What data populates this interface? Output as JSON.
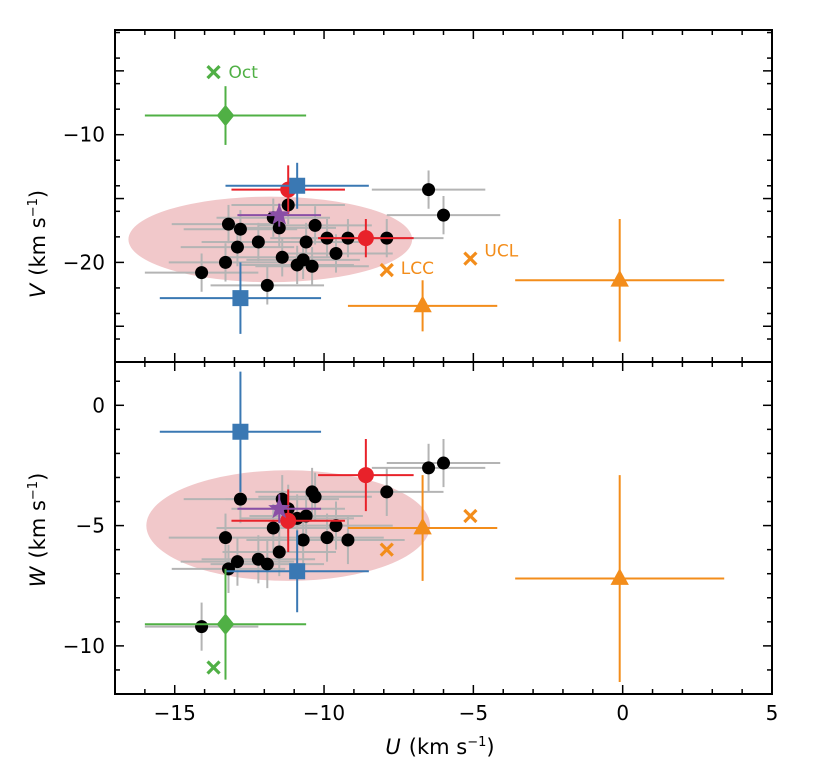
{
  "chart_data": {
    "type": "scatter",
    "description_axes": {
      "x": {
        "label_var": "U",
        "label_units": "(km s",
        "label_sup": "−1",
        "label_close": ")",
        "lim": [
          -17,
          5
        ],
        "ticks": [
          -15,
          -10,
          -5,
          0,
          5
        ],
        "tick_labels": [
          "−15",
          "−10",
          "−5",
          "0",
          "5"
        ]
      },
      "top_y": {
        "label_var": "V",
        "label_units": "(km s",
        "label_sup": "−1",
        "label_close": ")",
        "lim": [
          -27.8,
          -1.8
        ],
        "ticks": [
          -10,
          -20
        ],
        "tick_labels": [
          "−10",
          "−20"
        ]
      },
      "bottom_y": {
        "label_var": "W",
        "label_units": "(km s",
        "label_sup": "−1",
        "label_close": ")",
        "lim": [
          -12,
          1.8
        ],
        "ticks": [
          0,
          -5,
          -10
        ],
        "tick_labels": [
          "0",
          "−5",
          "−10"
        ]
      }
    },
    "colors": {
      "black": "#000000",
      "grey": "#b4b4b4",
      "red": "#e8222a",
      "blue": "#3a78b3",
      "green": "#50b045",
      "orange": "#f38d1b",
      "purple": "#8a4fa6",
      "ellipse": "#e7a4a7"
    },
    "ellipses": {
      "top": {
        "cx": -11.8,
        "cy": -18.2,
        "rx": 4.75,
        "ry": 3.35
      },
      "bottom": {
        "cx": -11.2,
        "cy": -5.0,
        "rx": 4.75,
        "ry": 2.3
      }
    },
    "black_points_UVW": [
      [
        -14.1,
        -20.8,
        -9.2
      ],
      [
        -13.3,
        -20.0,
        -5.5
      ],
      [
        -13.2,
        -17.0,
        -6.8
      ],
      [
        -12.9,
        -18.8,
        -6.5
      ],
      [
        -12.8,
        -17.4,
        -3.9
      ],
      [
        -12.2,
        -18.4,
        -6.4
      ],
      [
        -11.9,
        -21.8,
        -6.6
      ],
      [
        -11.7,
        -16.5,
        -5.1
      ],
      [
        -11.5,
        -17.3,
        -6.1
      ],
      [
        -11.4,
        -19.6,
        -3.9
      ],
      [
        -11.2,
        -15.5,
        -4.3
      ],
      [
        -10.9,
        -20.2,
        -4.7
      ],
      [
        -10.7,
        -19.8,
        -5.6
      ],
      [
        -10.6,
        -18.4,
        -4.6
      ],
      [
        -10.4,
        -20.3,
        -3.6
      ],
      [
        -10.3,
        -17.1,
        -3.8
      ],
      [
        -9.9,
        -18.1,
        -5.5
      ],
      [
        -9.6,
        -19.3,
        -5.0
      ],
      [
        -9.2,
        -18.1,
        -5.6
      ],
      [
        -7.9,
        -18.1,
        -3.6
      ],
      [
        -6.5,
        -14.3,
        -2.6
      ],
      [
        -6.0,
        -16.3,
        -2.4
      ]
    ],
    "groups": [
      {
        "name": "red",
        "marker": "circle",
        "points": [
          {
            "u": -11.2,
            "v": -14.3,
            "w": -4.8,
            "uerr": 1.9,
            "verr": 1.9,
            "werr": 1.3
          },
          {
            "u": -8.6,
            "v": -18.1,
            "w": -2.9,
            "uerr": 1.6,
            "verr": 1.5,
            "werr": 1.5
          }
        ]
      },
      {
        "name": "blue",
        "marker": "square",
        "points": [
          {
            "u": -10.9,
            "v": -14.0,
            "w": -6.9,
            "uerr": 2.4,
            "verr": 1.8,
            "werr": 1.7
          },
          {
            "u": -12.8,
            "v": -22.8,
            "w": -1.1,
            "uerr": 2.7,
            "verr": 2.8,
            "werr": 2.5
          }
        ]
      },
      {
        "name": "green",
        "marker": "diamond",
        "label": "Oct",
        "points": [
          {
            "u": -13.3,
            "v": -8.5,
            "w": -9.1,
            "uerr": 2.7,
            "verr": 2.3,
            "werr": 2.3
          }
        ]
      },
      {
        "name": "orange",
        "marker": "triangle",
        "points": [
          {
            "u": -6.7,
            "v": -23.4,
            "w": -5.1,
            "uerr": 2.5,
            "verr": 2.0,
            "werr": 2.2
          },
          {
            "u": -0.1,
            "v": -21.4,
            "w": -7.2,
            "uerr": 3.5,
            "verr": 4.8,
            "werr": 4.3
          }
        ]
      },
      {
        "name": "purple",
        "marker": "star",
        "points": [
          {
            "u": -11.5,
            "v": -16.3,
            "w": -4.3,
            "uerr": 1.4,
            "verr": 0.9,
            "werr": 0.6
          }
        ]
      }
    ],
    "crosses": [
      {
        "name": "Oct",
        "color": "green",
        "u": -13.7,
        "v": -5.1,
        "w": -10.9
      },
      {
        "name": "LCC",
        "color": "orange",
        "u": -7.9,
        "v": -20.6,
        "w": -6.0
      },
      {
        "name": "UCL",
        "color": "orange",
        "u": -5.1,
        "v": -19.7,
        "w": -4.6
      }
    ],
    "labels": {
      "oct": "Oct",
      "lcc": "LCC",
      "ucl": "UCL"
    }
  }
}
